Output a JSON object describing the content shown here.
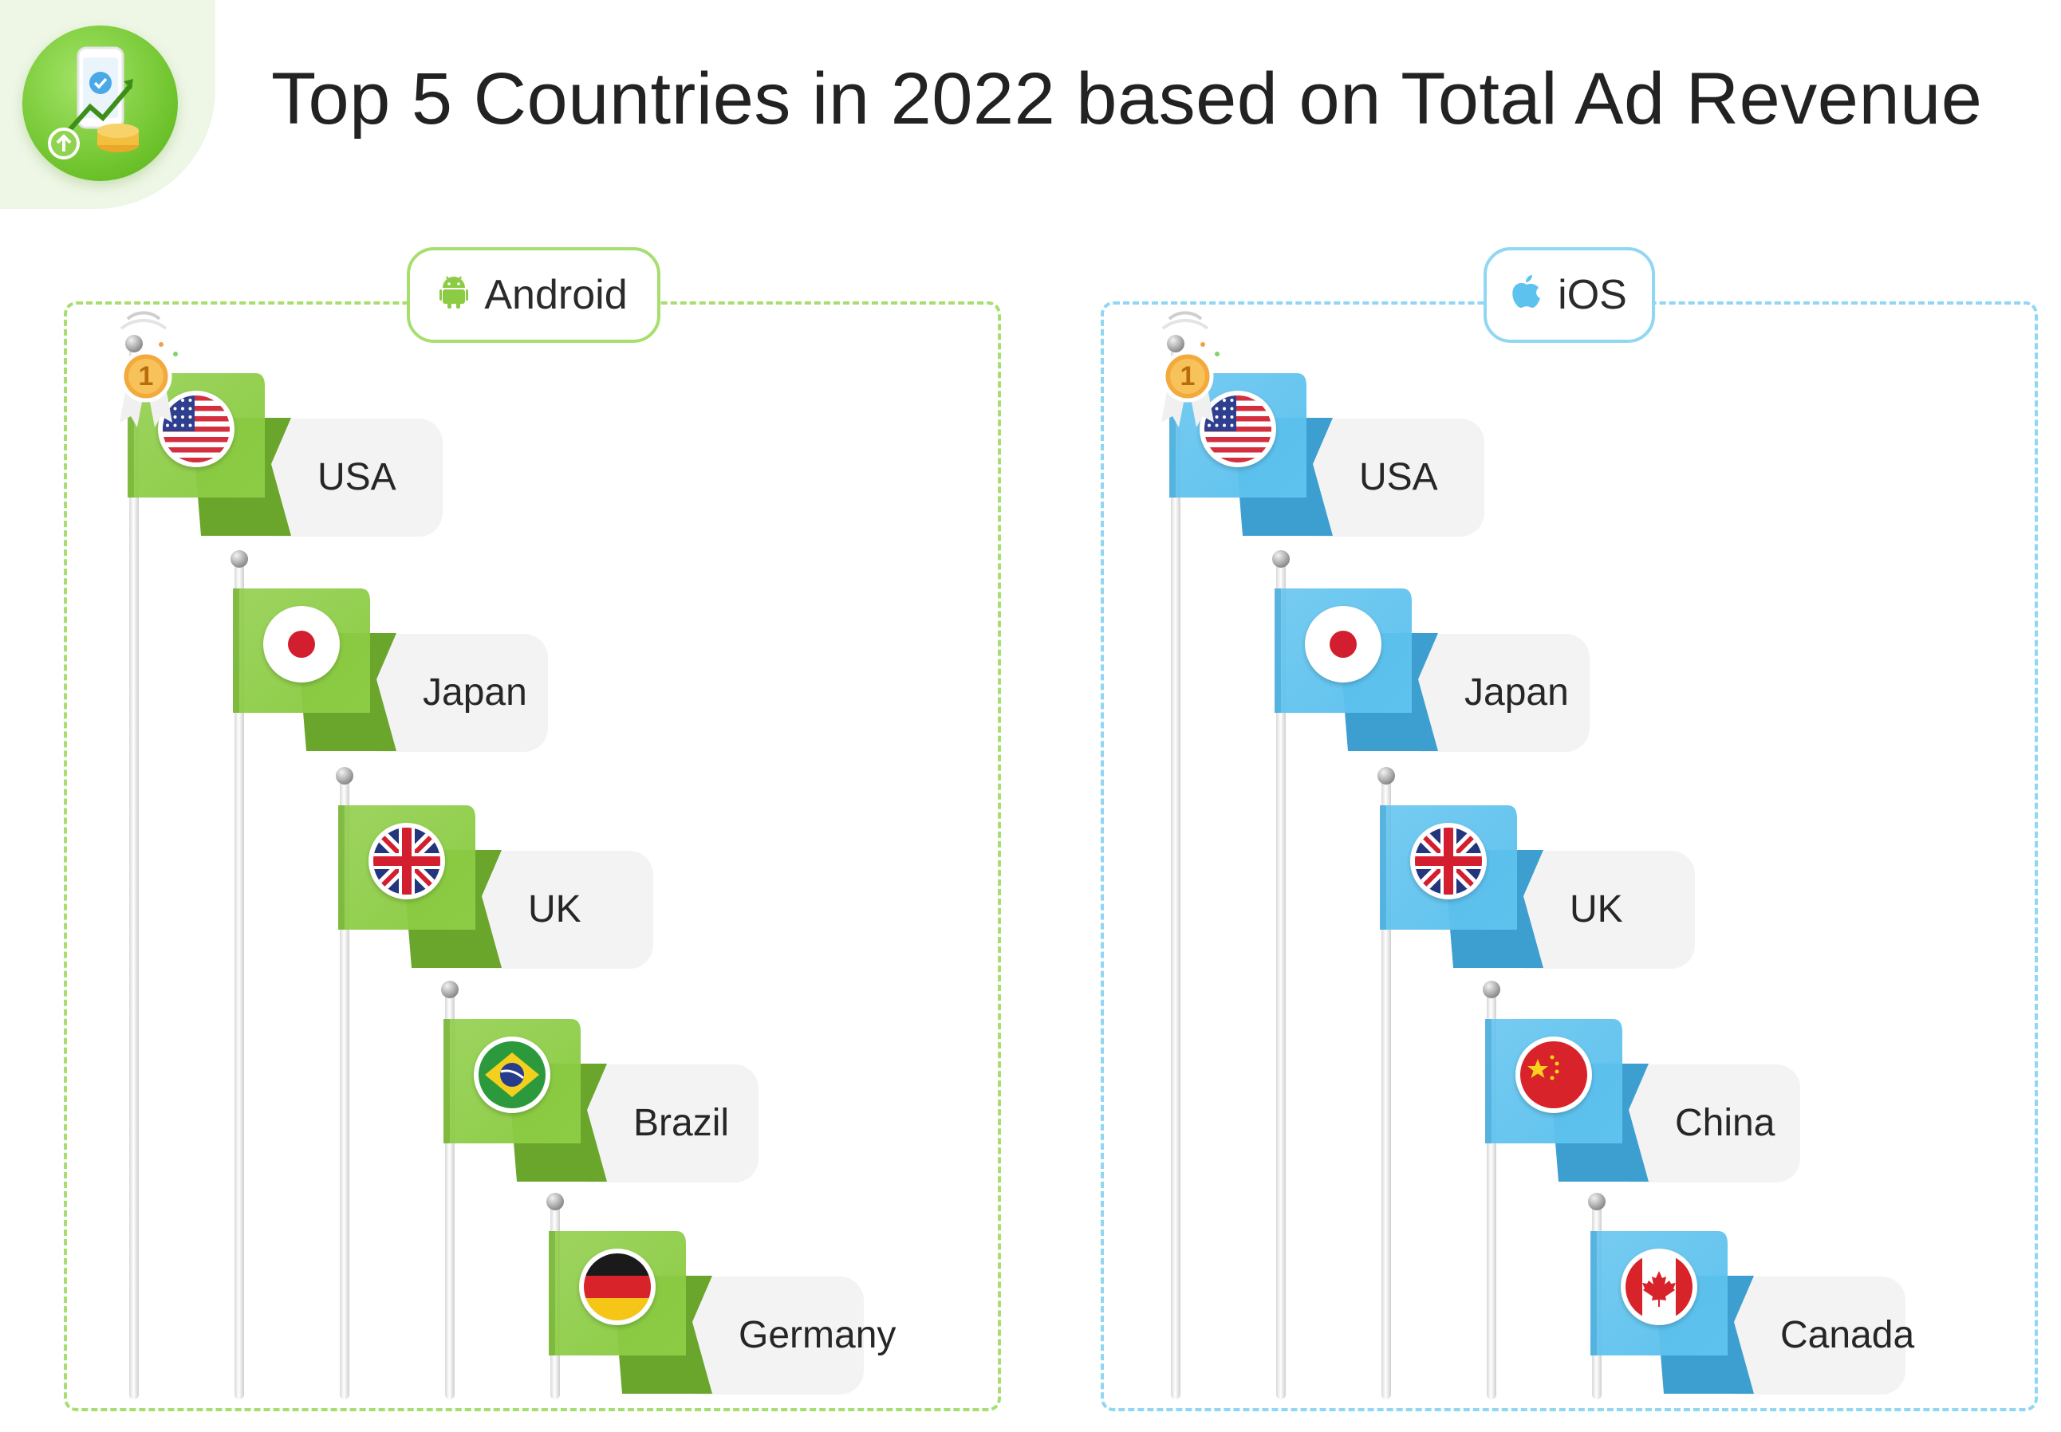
{
  "title": "Top 5 Countries in 2022 based on Total Ad Revenue",
  "logo_icon": "mobile-revenue-icon",
  "colors": {
    "android": "#8ccc44",
    "android_border": "#a7de6f",
    "ios": "#5ec2ee",
    "ios_border": "#8fd7f2"
  },
  "chart_data": {
    "type": "table",
    "title": "Top 5 Countries in 2022 based on Total Ad Revenue",
    "platforms": [
      {
        "name": "Android",
        "ranking": [
          "USA",
          "Japan",
          "UK",
          "Brazil",
          "Germany"
        ]
      },
      {
        "name": "iOS",
        "ranking": [
          "USA",
          "Japan",
          "UK",
          "China",
          "Canada"
        ]
      }
    ]
  },
  "android": {
    "label": "Android",
    "icon": "android-icon",
    "rank1_badge": "1",
    "items": [
      {
        "name": "USA",
        "flag": "usa"
      },
      {
        "name": "Japan",
        "flag": "japan"
      },
      {
        "name": "UK",
        "flag": "uk"
      },
      {
        "name": "Brazil",
        "flag": "brazil"
      },
      {
        "name": "Germany",
        "flag": "germany"
      }
    ]
  },
  "ios": {
    "label": "iOS",
    "icon": "apple-icon",
    "rank1_badge": "1",
    "items": [
      {
        "name": "USA",
        "flag": "usa"
      },
      {
        "name": "Japan",
        "flag": "japan"
      },
      {
        "name": "UK",
        "flag": "uk"
      },
      {
        "name": "China",
        "flag": "china"
      },
      {
        "name": "Canada",
        "flag": "canada"
      }
    ]
  }
}
